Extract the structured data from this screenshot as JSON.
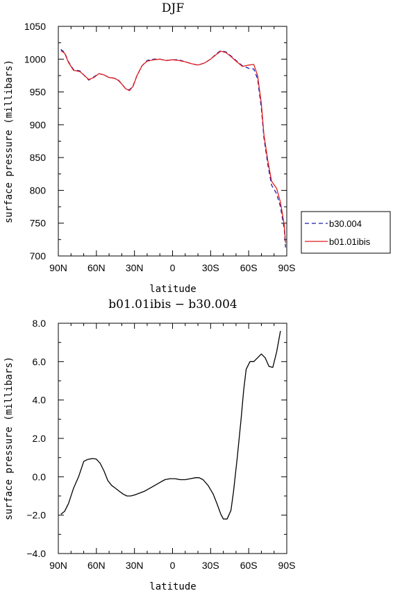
{
  "chart_data": [
    {
      "type": "line",
      "title": "DJF",
      "xlabel": "latitude",
      "ylabel": "surface pressure (millibars)",
      "xlim": [
        -90,
        90
      ],
      "ylim": [
        700,
        1050
      ],
      "x_direction": "north-to-south",
      "x_ticks": [
        {
          "value": -90,
          "label": "90N"
        },
        {
          "value": -60,
          "label": "60N"
        },
        {
          "value": -30,
          "label": "30N"
        },
        {
          "value": 0,
          "label": "0"
        },
        {
          "value": 30,
          "label": "30S"
        },
        {
          "value": 60,
          "label": "60S"
        },
        {
          "value": 90,
          "label": "90S"
        }
      ],
      "y_ticks": [
        700,
        750,
        800,
        850,
        900,
        950,
        1000,
        1050
      ],
      "grid": false,
      "legend_placement": "outside-right",
      "series": [
        {
          "name": "b30.004",
          "color": "#1a1aa6",
          "style": "dashed",
          "points": [
            [
              -88,
              1015
            ],
            [
              -85,
              1010
            ],
            [
              -82,
              996
            ],
            [
              -78,
              984
            ],
            [
              -73,
              982
            ],
            [
              -70,
              976
            ],
            [
              -66,
              968
            ],
            [
              -62,
              973
            ],
            [
              -58,
              978
            ],
            [
              -54,
              976
            ],
            [
              -50,
              972
            ],
            [
              -46,
              971
            ],
            [
              -43,
              969
            ],
            [
              -40,
              962
            ],
            [
              -37,
              955
            ],
            [
              -34,
              953
            ],
            [
              -31,
              960
            ],
            [
              -28,
              975
            ],
            [
              -24,
              990
            ],
            [
              -20,
              998
            ],
            [
              -15,
              1000
            ],
            [
              -10,
              1000
            ],
            [
              -5,
              998
            ],
            [
              0,
              999
            ],
            [
              5,
              999
            ],
            [
              10,
              996
            ],
            [
              15,
              993
            ],
            [
              20,
              991
            ],
            [
              25,
              994
            ],
            [
              30,
              1000
            ],
            [
              35,
              1009
            ],
            [
              38,
              1013
            ],
            [
              42,
              1011
            ],
            [
              46,
              1005
            ],
            [
              50,
              998
            ],
            [
              55,
              990
            ],
            [
              60,
              986
            ],
            [
              64,
              985
            ],
            [
              67,
              970
            ],
            [
              70,
              925
            ],
            [
              72,
              880
            ],
            [
              75,
              840
            ],
            [
              78,
              808
            ],
            [
              82,
              795
            ],
            [
              85,
              775
            ],
            [
              88,
              742
            ],
            [
              89,
              713
            ]
          ]
        },
        {
          "name": "b01.01ibis",
          "color": "#e11b1b",
          "style": "solid",
          "points": [
            [
              -88,
              1013
            ],
            [
              -85,
              1009
            ],
            [
              -82,
              995
            ],
            [
              -78,
              983
            ],
            [
              -73,
              981
            ],
            [
              -70,
              976
            ],
            [
              -66,
              969
            ],
            [
              -62,
              972
            ],
            [
              -58,
              978
            ],
            [
              -54,
              976
            ],
            [
              -50,
              972
            ],
            [
              -46,
              971
            ],
            [
              -43,
              968
            ],
            [
              -40,
              962
            ],
            [
              -37,
              955
            ],
            [
              -34,
              952
            ],
            [
              -31,
              959
            ],
            [
              -28,
              975
            ],
            [
              -24,
              990
            ],
            [
              -20,
              997
            ],
            [
              -15,
              999
            ],
            [
              -10,
              1000
            ],
            [
              -5,
              998
            ],
            [
              0,
              999
            ],
            [
              5,
              998
            ],
            [
              10,
              996
            ],
            [
              15,
              993
            ],
            [
              20,
              991
            ],
            [
              25,
              994
            ],
            [
              30,
              1000
            ],
            [
              35,
              1008
            ],
            [
              38,
              1012
            ],
            [
              42,
              1010
            ],
            [
              46,
              1004
            ],
            [
              50,
              997
            ],
            [
              55,
              989
            ],
            [
              60,
              991
            ],
            [
              64,
              992
            ],
            [
              67,
              975
            ],
            [
              70,
              932
            ],
            [
              72,
              885
            ],
            [
              75,
              846
            ],
            [
              78,
              814
            ],
            [
              82,
              803
            ],
            [
              85,
              782
            ],
            [
              88,
              748
            ],
            [
              89,
              720
            ]
          ]
        }
      ]
    },
    {
      "type": "line",
      "title": "b01.01ibis − b30.004",
      "xlabel": "latitude",
      "ylabel": "surface pressure (millibars)",
      "xlim": [
        -90,
        90
      ],
      "ylim": [
        -4,
        8
      ],
      "x_direction": "north-to-south",
      "x_ticks": [
        {
          "value": -90,
          "label": "90N"
        },
        {
          "value": -60,
          "label": "60N"
        },
        {
          "value": -30,
          "label": "30N"
        },
        {
          "value": 0,
          "label": "0"
        },
        {
          "value": 30,
          "label": "30S"
        },
        {
          "value": 60,
          "label": "60S"
        },
        {
          "value": 90,
          "label": "90S"
        }
      ],
      "y_ticks": [
        {
          "value": -4,
          "label": "−4.0"
        },
        {
          "value": -2,
          "label": "−2.0"
        },
        {
          "value": 0,
          "label": "0.0"
        },
        {
          "value": 2,
          "label": "2.0"
        },
        {
          "value": 4,
          "label": "4.0"
        },
        {
          "value": 6,
          "label": "6.0"
        },
        {
          "value": 8,
          "label": "8.0"
        }
      ],
      "grid": false,
      "series": [
        {
          "color": "#000000",
          "style": "solid",
          "points": [
            [
              -88,
              -1.95
            ],
            [
              -85,
              -1.8
            ],
            [
              -82,
              -1.4
            ],
            [
              -78,
              -0.6
            ],
            [
              -74,
              0.0
            ],
            [
              -70,
              0.8
            ],
            [
              -67,
              0.9
            ],
            [
              -63,
              0.95
            ],
            [
              -60,
              0.92
            ],
            [
              -57,
              0.7
            ],
            [
              -54,
              0.3
            ],
            [
              -51,
              -0.2
            ],
            [
              -48,
              -0.45
            ],
            [
              -45,
              -0.6
            ],
            [
              -42,
              -0.75
            ],
            [
              -39,
              -0.9
            ],
            [
              -36,
              -1.0
            ],
            [
              -33,
              -1.0
            ],
            [
              -30,
              -0.95
            ],
            [
              -26,
              -0.85
            ],
            [
              -22,
              -0.75
            ],
            [
              -18,
              -0.6
            ],
            [
              -14,
              -0.45
            ],
            [
              -10,
              -0.3
            ],
            [
              -6,
              -0.15
            ],
            [
              -2,
              -0.1
            ],
            [
              2,
              -0.1
            ],
            [
              6,
              -0.15
            ],
            [
              10,
              -0.15
            ],
            [
              14,
              -0.1
            ],
            [
              18,
              -0.05
            ],
            [
              21,
              -0.05
            ],
            [
              24,
              -0.15
            ],
            [
              28,
              -0.45
            ],
            [
              32,
              -0.9
            ],
            [
              35,
              -1.4
            ],
            [
              38,
              -1.95
            ],
            [
              40,
              -2.2
            ],
            [
              43,
              -2.2
            ],
            [
              46,
              -1.75
            ],
            [
              48,
              -0.8
            ],
            [
              51,
              1.0
            ],
            [
              54,
              3.0
            ],
            [
              56,
              4.5
            ],
            [
              58,
              5.6
            ],
            [
              61,
              6.0
            ],
            [
              64,
              6.0
            ],
            [
              67,
              6.2
            ],
            [
              70,
              6.4
            ],
            [
              73,
              6.2
            ],
            [
              76,
              5.75
            ],
            [
              79,
              5.7
            ],
            [
              82,
              6.5
            ],
            [
              85,
              7.6
            ]
          ]
        }
      ]
    }
  ]
}
